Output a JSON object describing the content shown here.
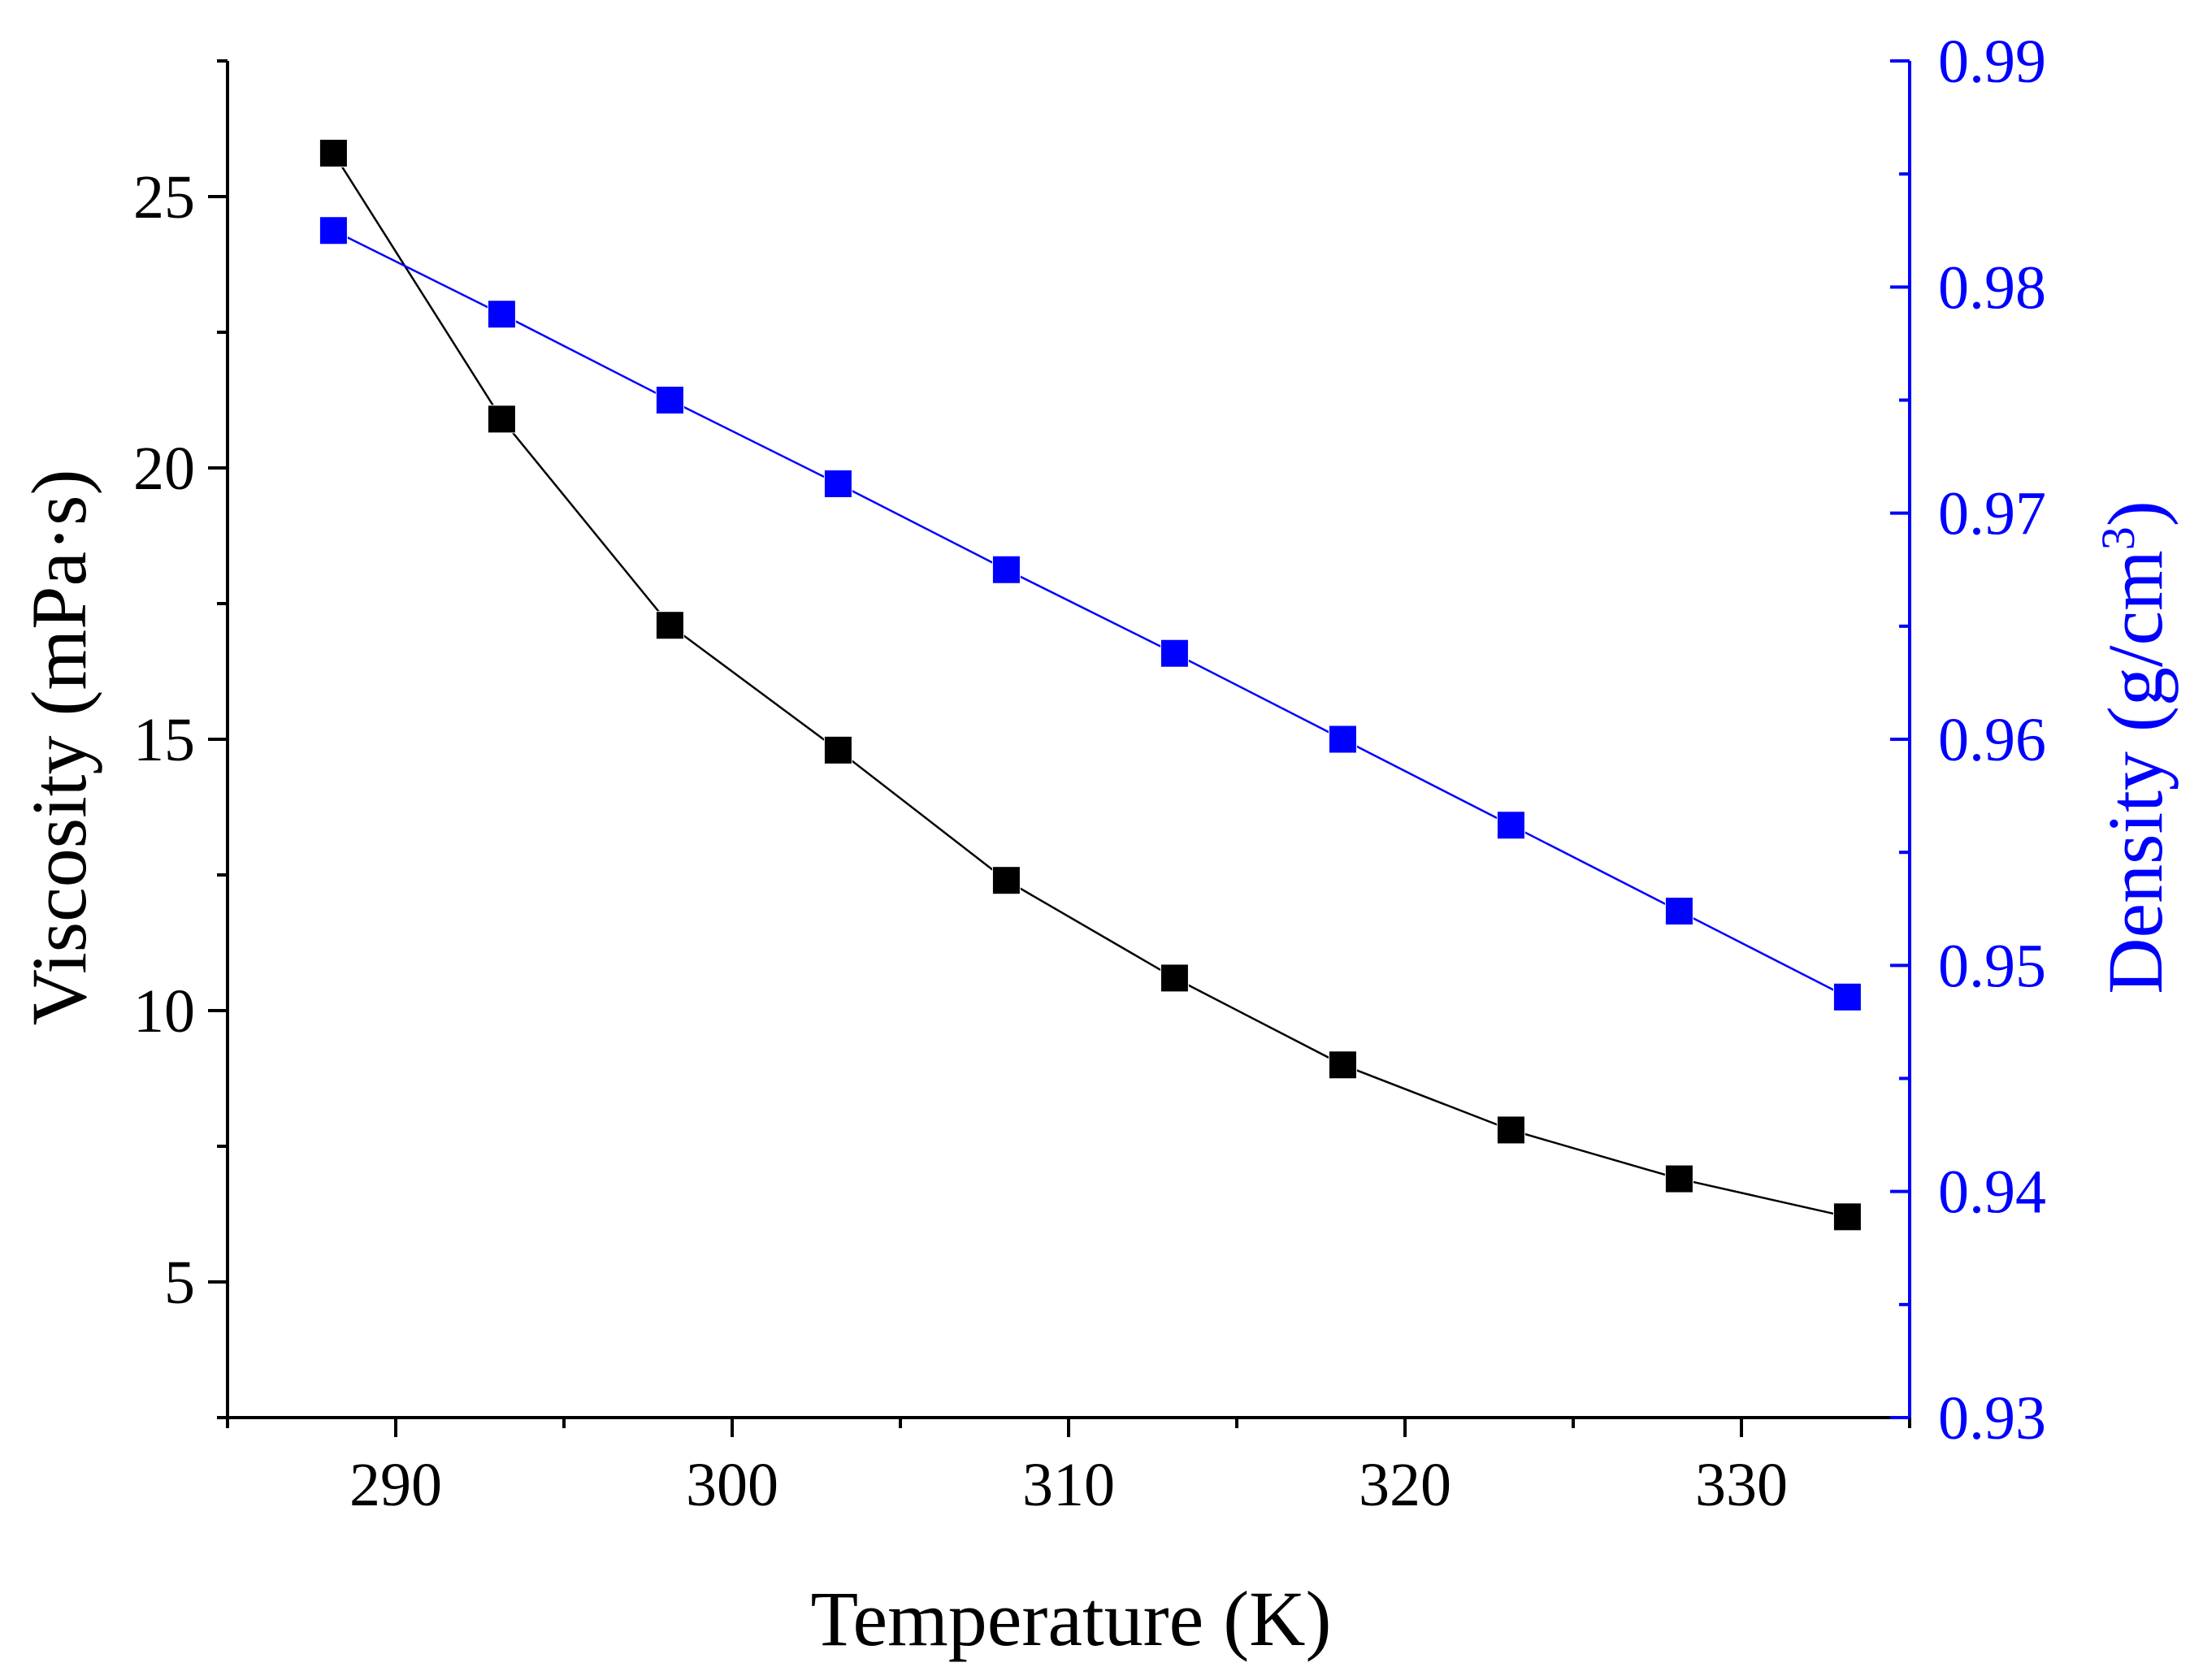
{
  "chart_data": {
    "type": "line",
    "title": "",
    "xlabel": "Temperature (K)",
    "ylabel": "Viscosity (mPa·s)",
    "y2label_base": "Density (g/cm",
    "y2label_sup": "3",
    "y2label_close": ")",
    "xlim": [
      285,
      335
    ],
    "ylim": [
      2.5,
      27.5
    ],
    "y2lim": [
      0.93,
      0.99
    ],
    "xticks": [
      290,
      300,
      310,
      320,
      330
    ],
    "xtick_labels": [
      "290",
      "300",
      "310",
      "320",
      "330"
    ],
    "yticks": [
      5,
      10,
      15,
      20,
      25
    ],
    "ytick_labels": [
      "5",
      "10",
      "15",
      "20",
      "25"
    ],
    "y2ticks": [
      0.93,
      0.94,
      0.95,
      0.96,
      0.97,
      0.98,
      0.99
    ],
    "y2tick_labels": [
      "0.93",
      "0.94",
      "0.95",
      "0.96",
      "0.97",
      "0.98",
      "0.99"
    ],
    "grid": false,
    "x": [
      288.15,
      293.15,
      298.15,
      303.15,
      308.15,
      313.15,
      318.15,
      323.15,
      328.15,
      333.15
    ],
    "series": [
      {
        "name": "Viscosity",
        "axis": "left",
        "color": "#000000",
        "marker": "square",
        "values": [
          25.8,
          20.9,
          17.1,
          14.8,
          12.4,
          10.6,
          9.0,
          7.8,
          6.9,
          6.2
        ]
      },
      {
        "name": "Density",
        "axis": "right",
        "color": "#0000ff",
        "marker": "square",
        "values": [
          0.9825,
          0.9788,
          0.975,
          0.9713,
          0.9675,
          0.9638,
          0.96,
          0.9562,
          0.9524,
          0.9486
        ]
      }
    ]
  },
  "colors": {
    "left_axis": "#000000",
    "right_axis": "#0000ff"
  }
}
